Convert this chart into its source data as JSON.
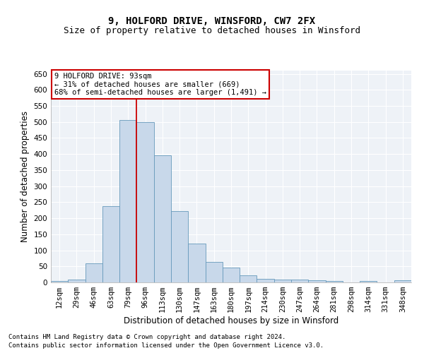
{
  "title": "9, HOLFORD DRIVE, WINSFORD, CW7 2FX",
  "subtitle": "Size of property relative to detached houses in Winsford",
  "xlabel": "Distribution of detached houses by size in Winsford",
  "ylabel": "Number of detached properties",
  "bar_labels": [
    "12sqm",
    "29sqm",
    "46sqm",
    "63sqm",
    "79sqm",
    "96sqm",
    "113sqm",
    "130sqm",
    "147sqm",
    "163sqm",
    "180sqm",
    "197sqm",
    "214sqm",
    "230sqm",
    "247sqm",
    "264sqm",
    "281sqm",
    "298sqm",
    "314sqm",
    "331sqm",
    "348sqm"
  ],
  "bar_values": [
    5,
    8,
    60,
    238,
    507,
    500,
    395,
    222,
    121,
    63,
    47,
    22,
    12,
    9,
    9,
    7,
    4,
    1,
    5,
    1,
    6
  ],
  "bar_color": "#c8d8ea",
  "bar_edge_color": "#6699bb",
  "vline_color": "#cc0000",
  "vline_x": 4.5,
  "ylim": [
    0,
    660
  ],
  "yticks": [
    0,
    50,
    100,
    150,
    200,
    250,
    300,
    350,
    400,
    450,
    500,
    550,
    600,
    650
  ],
  "annotation_line1": "9 HOLFORD DRIVE: 93sqm",
  "annotation_line2": "← 31% of detached houses are smaller (669)",
  "annotation_line3": "68% of semi-detached houses are larger (1,491) →",
  "annotation_box_facecolor": "#ffffff",
  "annotation_box_edgecolor": "#cc0000",
  "footnote1": "Contains HM Land Registry data © Crown copyright and database right 2024.",
  "footnote2": "Contains public sector information licensed under the Open Government Licence v3.0.",
  "bg_color": "#eef2f7",
  "grid_color": "#ffffff",
  "fig_facecolor": "#ffffff",
  "title_fontsize": 10,
  "subtitle_fontsize": 9,
  "axis_label_fontsize": 8.5,
  "tick_fontsize": 7.5,
  "annotation_fontsize": 7.5,
  "footnote_fontsize": 6.5
}
